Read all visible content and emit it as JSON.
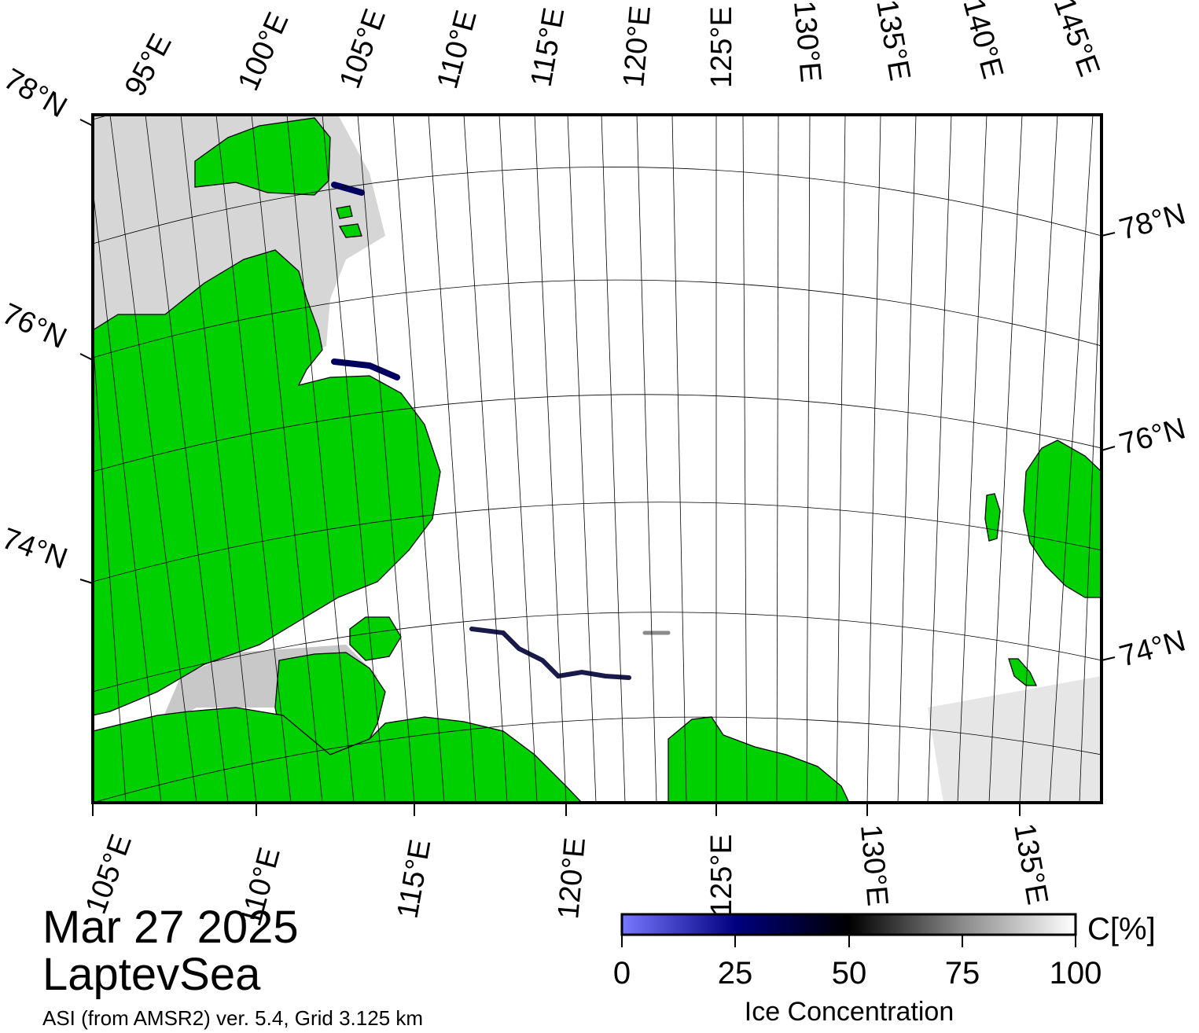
{
  "map": {
    "date": "Mar 27 2025",
    "region": "LaptevSea",
    "source": "ASI (from AMSR2) ver. 5.4,  Grid 3.125 km",
    "top_lon_labels": [
      "95°E",
      "100°E",
      "105°E",
      "110°E",
      "115°E",
      "120°E",
      "125°E",
      "130°E",
      "135°E",
      "140°E",
      "145°E"
    ],
    "bottom_lon_labels": [
      "105°E",
      "110°E",
      "115°E",
      "120°E",
      "125°E",
      "130°E",
      "135°E"
    ],
    "left_lat_labels": [
      "78°N",
      "76°N",
      "74°N"
    ],
    "right_lat_labels": [
      "78°N",
      "76°N",
      "74°N"
    ],
    "colors": {
      "land": "#00d000",
      "ice_low": "#7878ff",
      "ice_mid": "#000060",
      "ice_50": "#000000",
      "ice_high": "#ffffff",
      "shelf": "#8c8c8c"
    }
  },
  "colorbar": {
    "unit_label": "C[%]",
    "title": "Ice Concentration",
    "ticks": [
      "0",
      "25",
      "50",
      "75",
      "100"
    ],
    "range": [
      0,
      100
    ]
  }
}
